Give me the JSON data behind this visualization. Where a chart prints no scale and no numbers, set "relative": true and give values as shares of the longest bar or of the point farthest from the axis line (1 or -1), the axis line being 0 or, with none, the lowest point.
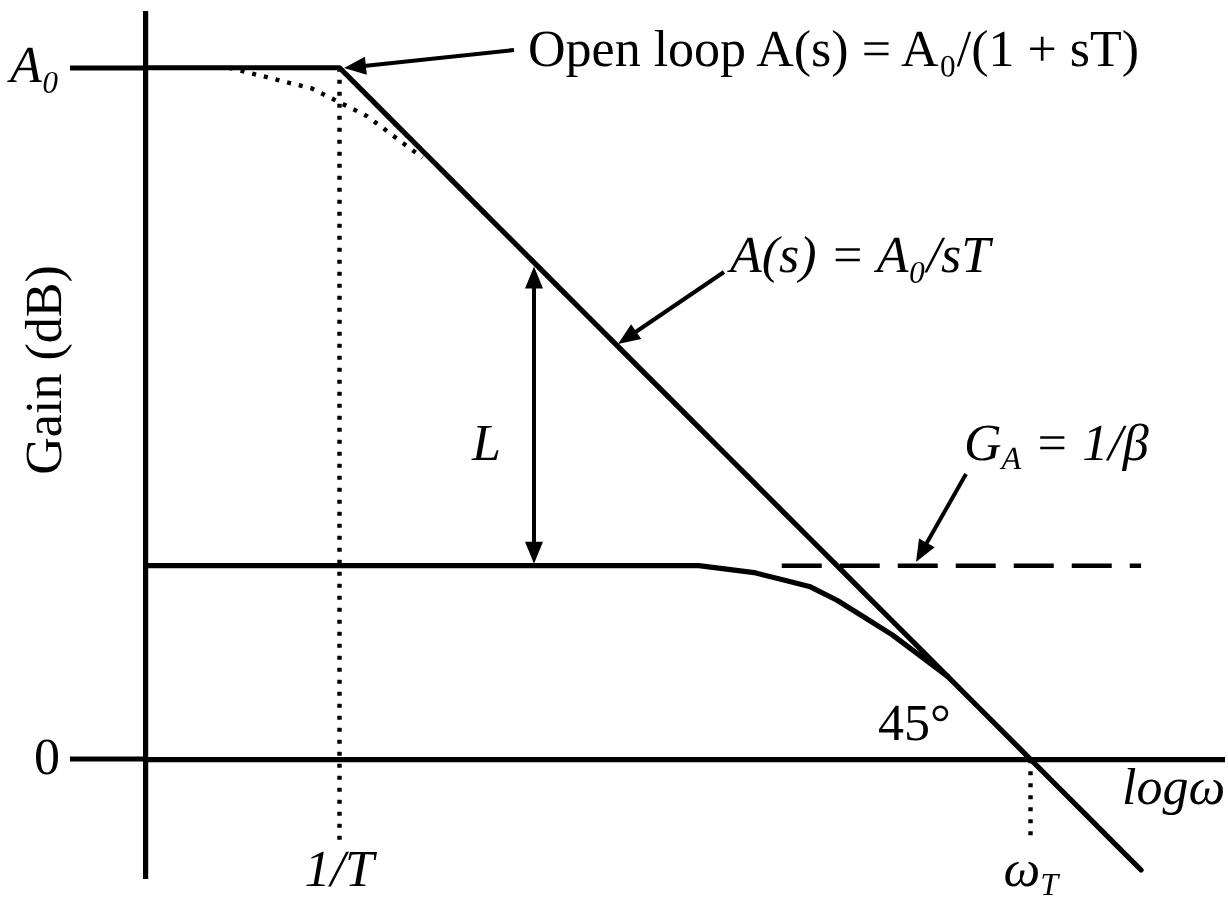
{
  "chart_data": {
    "type": "line",
    "relative": true,
    "ylabel": "Gain (dB)",
    "xlabel": "logω",
    "categories": [
      null,
      null,
      null,
      null,
      null,
      null,
      null,
      "1/T",
      null,
      null,
      null,
      null,
      null,
      null,
      null,
      null,
      null,
      null,
      null,
      null,
      null,
      null,
      null,
      null,
      null,
      null,
      null,
      null,
      null,
      null,
      null,
      null,
      "ω$_{T}$",
      null,
      null,
      null,
      null,
      null,
      null,
      null
    ],
    "marker": "none",
    "series": [
      {
        "values": [
          1,
          1,
          1,
          1,
          1,
          1,
          1,
          1,
          0.96,
          0.92,
          0.88,
          0.84,
          0.8,
          0.76,
          0.72,
          0.68,
          0.64,
          0.6,
          0.56,
          0.52,
          0.48,
          0.44,
          0.4,
          0.36,
          0.32,
          0.28,
          0.24,
          0.2,
          0.16,
          0.12,
          0.08,
          0.04,
          0,
          -0.04,
          -0.08,
          -0.12,
          -0.16,
          null,
          null,
          null
        ],
        "color": "#000000",
        "line_style": "solid"
      },
      {
        "values": [
          null,
          null,
          null,
          1,
          0.99,
          0.98,
          0.97,
          0.95,
          0.93,
          0.9,
          0.87,
          null,
          null,
          null,
          null,
          null,
          null,
          null,
          null,
          null,
          null,
          null,
          null,
          null,
          null,
          null,
          null,
          null,
          null,
          null,
          null,
          null,
          null,
          null,
          null,
          null,
          null,
          null,
          null,
          null
        ],
        "color": "#000000",
        "line_style": "dotted"
      },
      {
        "values": [
          0.28,
          0.28,
          0.28,
          0.28,
          0.28,
          0.28,
          0.28,
          0.28,
          0.28,
          0.28,
          0.28,
          0.28,
          0.28,
          0.28,
          0.28,
          0.28,
          0.28,
          0.28,
          0.28,
          0.28,
          0.28,
          0.275,
          0.27,
          0.26,
          0.25,
          0.23,
          0.205,
          0.18,
          0.15,
          0.12,
          null,
          null,
          null,
          null,
          null,
          null,
          null,
          null,
          null,
          null
        ],
        "color": "#000000",
        "line_style": "solid"
      },
      {
        "values": [
          null,
          null,
          null,
          null,
          null,
          null,
          null,
          null,
          null,
          null,
          null,
          null,
          null,
          null,
          null,
          null,
          null,
          null,
          null,
          null,
          null,
          null,
          null,
          0.28,
          0.28,
          0.28,
          0.28,
          0.28,
          0.28,
          0.28,
          0.28,
          0.28,
          0.28,
          0.28,
          0.28,
          0.28,
          0.28,
          null,
          null,
          null
        ],
        "color": "#000000",
        "line_style": "dashed"
      }
    ],
    "ref_lines": [
      {
        "axis": "x",
        "value": "1/T",
        "line_style": "dotted"
      },
      {
        "axis": "x",
        "value": "ω$_{T}$",
        "line_style": "dotted"
      }
    ],
    "annotations": [
      "A₀",
      "0",
      "Open loop A(s) = A₀/(1 + sT)",
      "A(s) = A₀/sT",
      "G$_{A}$ = 1/β",
      "L",
      "45°"
    ]
  }
}
